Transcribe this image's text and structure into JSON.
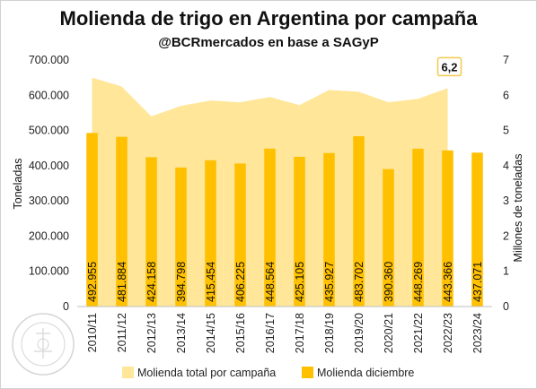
{
  "chart_data": {
    "type": "bar",
    "title": "Molienda de trigo en Argentina por campaña",
    "subtitle": "@BCRmercados en base a SAGyP",
    "ylabel": "Toneladas",
    "y2label": "Millones de toneladas",
    "ylim": [
      0,
      700000
    ],
    "y2lim": [
      0,
      7
    ],
    "yticks": [
      "0",
      "100.000",
      "200.000",
      "300.000",
      "400.000",
      "500.000",
      "600.000",
      "700.000"
    ],
    "y2ticks": [
      "0",
      "1",
      "2",
      "3",
      "4",
      "5",
      "6",
      "7"
    ],
    "categories": [
      "2010/11",
      "2011/12",
      "2012/13",
      "2013/14",
      "2014/15",
      "2015/16",
      "2016/17",
      "2017/18",
      "2018/19",
      "2019/20",
      "2020/21",
      "2021/22",
      "2022/23",
      "2023/24"
    ],
    "series": [
      {
        "name": "Molienda total por campaña",
        "type": "area",
        "axis": "right",
        "color": "#FFE699",
        "values": [
          6.5,
          6.25,
          5.4,
          5.7,
          5.85,
          5.8,
          5.95,
          5.72,
          6.15,
          6.1,
          5.8,
          5.9,
          6.2,
          null
        ]
      },
      {
        "name": "Molienda diciembre",
        "type": "bar",
        "axis": "left",
        "color": "#FFC000",
        "values": [
          492955,
          481884,
          424158,
          394798,
          415454,
          406225,
          448564,
          425105,
          435927,
          483702,
          390360,
          448269,
          443366,
          437071
        ],
        "labels": [
          "492.955",
          "481.884",
          "424.158",
          "394.798",
          "415.454",
          "406.225",
          "448.564",
          "425.105",
          "435.927",
          "483.702",
          "390.360",
          "448.269",
          "443.366",
          "437.071"
        ]
      }
    ],
    "annotation": {
      "text": "6,2",
      "category": "2022/23"
    },
    "legend_position": "bottom",
    "grid": false
  }
}
